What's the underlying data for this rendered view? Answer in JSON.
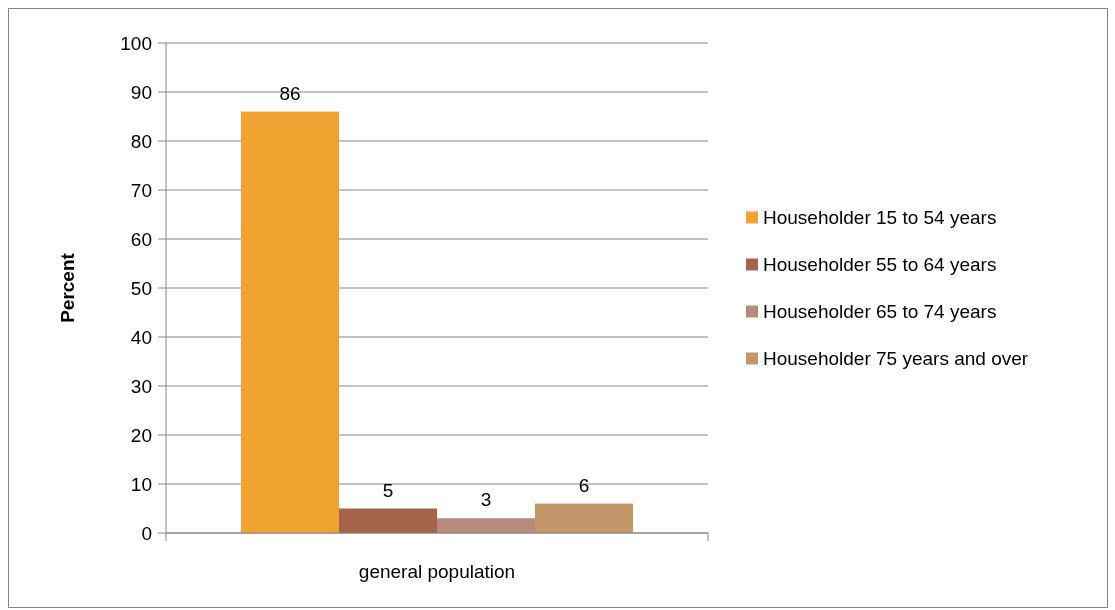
{
  "chart_data": {
    "type": "bar",
    "categories": [
      "general population"
    ],
    "ylabel": "Percent",
    "series": [
      {
        "name": "Householder 15 to 54 years",
        "color": "#f0a330",
        "values": [
          86
        ]
      },
      {
        "name": "Householder 55 to 64 years",
        "color": "#a5634c",
        "values": [
          5
        ]
      },
      {
        "name": "Householder 65 to 74 years",
        "color": "#b78a7e",
        "values": [
          3
        ]
      },
      {
        "name": "Householder 75 years and over",
        "color": "#c4976a",
        "values": [
          6
        ]
      }
    ],
    "ylim": [
      0,
      100
    ],
    "yticks": [
      0,
      10,
      20,
      30,
      40,
      50,
      60,
      70,
      80,
      90,
      100
    ],
    "grid": "y",
    "legend": "right",
    "data_labels": true
  }
}
